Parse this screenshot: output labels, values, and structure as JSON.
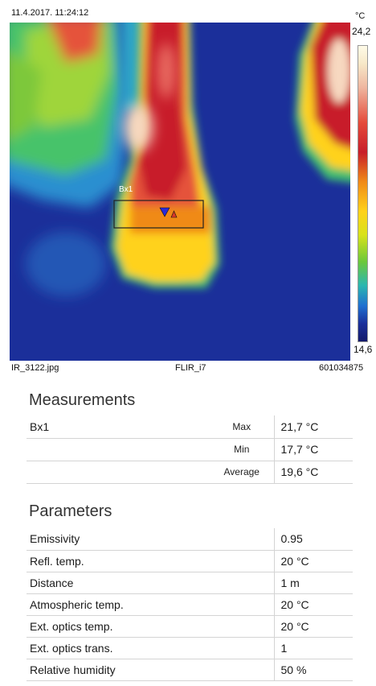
{
  "header": {
    "timestamp": "11.4.2017. 11:24:12",
    "unit": "°C",
    "scale_max": "24,2",
    "scale_min": "14,6"
  },
  "image": {
    "box_label": "Bx1"
  },
  "footer": {
    "filename": "IR_3122.jpg",
    "camera": "FLIR_i7",
    "serial": "601034875"
  },
  "colors": {
    "background": "#1b2f9a",
    "hot": "#c81e2a",
    "warm": "#f08a18",
    "mid": "#ffd21a",
    "cool": "#6cc83a"
  },
  "measurements": {
    "title": "Measurements",
    "rows": [
      {
        "name": "Bx1",
        "label": "Max",
        "value": "21,7 °C"
      },
      {
        "name": "",
        "label": "Min",
        "value": "17,7 °C"
      },
      {
        "name": "",
        "label": "Average",
        "value": "19,6 °C"
      }
    ]
  },
  "parameters": {
    "title": "Parameters",
    "rows": [
      {
        "label": "Emissivity",
        "value": "0.95"
      },
      {
        "label": "Refl. temp.",
        "value": "20 °C"
      },
      {
        "label": "Distance",
        "value": "1 m"
      },
      {
        "label": "Atmospheric temp.",
        "value": "20 °C"
      },
      {
        "label": "Ext. optics temp.",
        "value": "20 °C"
      },
      {
        "label": "Ext. optics trans.",
        "value": "1"
      },
      {
        "label": "Relative humidity",
        "value": "50 %"
      }
    ]
  }
}
